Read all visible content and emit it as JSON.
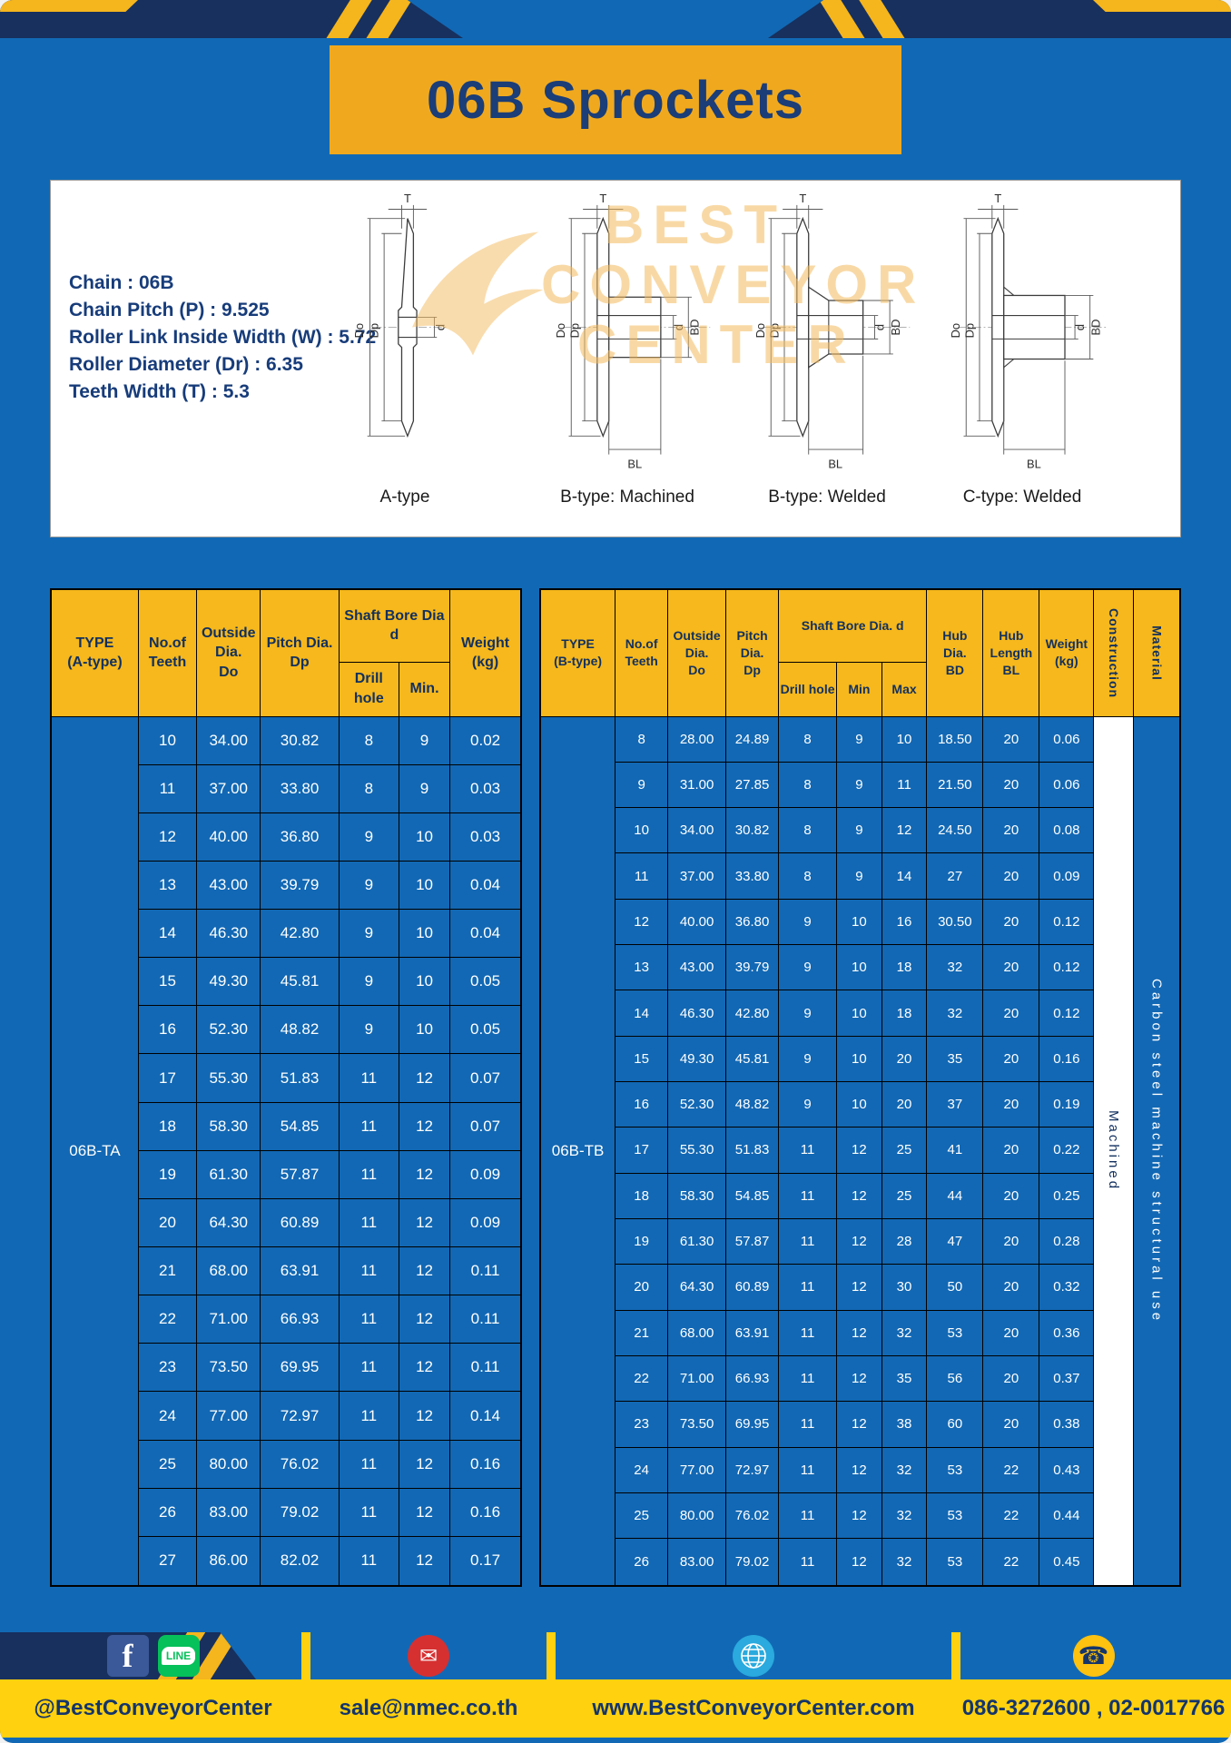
{
  "title": "06B Sprockets",
  "colors": {
    "page_blue": "#1169b5",
    "cell_blue": "#1268b4",
    "accent_yellow": "#f5b51d",
    "banner_yellow": "#f0a91e",
    "header_yellow": "#f6b81c",
    "footer_yellow": "#ffd10e",
    "navy": "#16305f"
  },
  "specs": {
    "lines": [
      "Chain  :  06B",
      "Chain Pitch (P)  :  9.525",
      "Roller Link Inside Width (W)  :  5.72",
      "Roller Diameter (Dr)  :  6.35",
      "Teeth Width (T)  :  5.3"
    ]
  },
  "drawings": {
    "watermark": [
      "BEST",
      "CONVEYOR",
      "CENTER"
    ],
    "labels": [
      "A-type",
      "B-type: Machined",
      "B-type: Welded",
      "C-type: Welded"
    ],
    "dims": {
      "T": "T",
      "Do": "Do",
      "Dp": "Dp",
      "d": "d",
      "BD": "BD",
      "BL": "BL"
    }
  },
  "table_a": {
    "headers": {
      "type": "TYPE\n(A-type)",
      "teeth": "No.of\nTeeth",
      "outside": "Outside\nDia.\nDo",
      "pitch": "Pitch Dia.\nDp",
      "bore_group": "Shaft Bore Dia d",
      "drill": "Drill hole",
      "min": "Min.",
      "weight": "Weight\n(kg)"
    },
    "type_label": "06B-TA",
    "rows": [
      [
        "10",
        "34.00",
        "30.82",
        "8",
        "9",
        "0.02"
      ],
      [
        "11",
        "37.00",
        "33.80",
        "8",
        "9",
        "0.03"
      ],
      [
        "12",
        "40.00",
        "36.80",
        "9",
        "10",
        "0.03"
      ],
      [
        "13",
        "43.00",
        "39.79",
        "9",
        "10",
        "0.04"
      ],
      [
        "14",
        "46.30",
        "42.80",
        "9",
        "10",
        "0.04"
      ],
      [
        "15",
        "49.30",
        "45.81",
        "9",
        "10",
        "0.05"
      ],
      [
        "16",
        "52.30",
        "48.82",
        "9",
        "10",
        "0.05"
      ],
      [
        "17",
        "55.30",
        "51.83",
        "11",
        "12",
        "0.07"
      ],
      [
        "18",
        "58.30",
        "54.85",
        "11",
        "12",
        "0.07"
      ],
      [
        "19",
        "61.30",
        "57.87",
        "11",
        "12",
        "0.09"
      ],
      [
        "20",
        "64.30",
        "60.89",
        "11",
        "12",
        "0.09"
      ],
      [
        "21",
        "68.00",
        "63.91",
        "11",
        "12",
        "0.11"
      ],
      [
        "22",
        "71.00",
        "66.93",
        "11",
        "12",
        "0.11"
      ],
      [
        "23",
        "73.50",
        "69.95",
        "11",
        "12",
        "0.11"
      ],
      [
        "24",
        "77.00",
        "72.97",
        "11",
        "12",
        "0.14"
      ],
      [
        "25",
        "80.00",
        "76.02",
        "11",
        "12",
        "0.16"
      ],
      [
        "26",
        "83.00",
        "79.02",
        "11",
        "12",
        "0.16"
      ],
      [
        "27",
        "86.00",
        "82.02",
        "11",
        "12",
        "0.17"
      ]
    ]
  },
  "table_b": {
    "headers": {
      "type": "TYPE\n(B-type)",
      "teeth": "No.of\nTeeth",
      "outside": "Outside\nDia.\nDo",
      "pitch": "Pitch\nDia.\nDp",
      "bore_group": "Shaft Bore Dia.  d",
      "drill": "Drill hole",
      "min": "Min",
      "max": "Max",
      "hub_dia": "Hub\nDia.\nBD",
      "hub_len": "Hub\nLength\nBL",
      "weight": "Weight\n(kg)",
      "construction": "Construction",
      "material": "Material"
    },
    "type_label": "06B-TB",
    "construction_value": "Machined",
    "material_value": "Carbon steel machine structural use",
    "rows": [
      [
        "8",
        "28.00",
        "24.89",
        "8",
        "9",
        "10",
        "18.50",
        "20",
        "0.06"
      ],
      [
        "9",
        "31.00",
        "27.85",
        "8",
        "9",
        "11",
        "21.50",
        "20",
        "0.06"
      ],
      [
        "10",
        "34.00",
        "30.82",
        "8",
        "9",
        "12",
        "24.50",
        "20",
        "0.08"
      ],
      [
        "11",
        "37.00",
        "33.80",
        "8",
        "9",
        "14",
        "27",
        "20",
        "0.09"
      ],
      [
        "12",
        "40.00",
        "36.80",
        "9",
        "10",
        "16",
        "30.50",
        "20",
        "0.12"
      ],
      [
        "13",
        "43.00",
        "39.79",
        "9",
        "10",
        "18",
        "32",
        "20",
        "0.12"
      ],
      [
        "14",
        "46.30",
        "42.80",
        "9",
        "10",
        "18",
        "32",
        "20",
        "0.12"
      ],
      [
        "15",
        "49.30",
        "45.81",
        "9",
        "10",
        "20",
        "35",
        "20",
        "0.16"
      ],
      [
        "16",
        "52.30",
        "48.82",
        "9",
        "10",
        "20",
        "37",
        "20",
        "0.19"
      ],
      [
        "17",
        "55.30",
        "51.83",
        "11",
        "12",
        "25",
        "41",
        "20",
        "0.22"
      ],
      [
        "18",
        "58.30",
        "54.85",
        "11",
        "12",
        "25",
        "44",
        "20",
        "0.25"
      ],
      [
        "19",
        "61.30",
        "57.87",
        "11",
        "12",
        "28",
        "47",
        "20",
        "0.28"
      ],
      [
        "20",
        "64.30",
        "60.89",
        "11",
        "12",
        "30",
        "50",
        "20",
        "0.32"
      ],
      [
        "21",
        "68.00",
        "63.91",
        "11",
        "12",
        "32",
        "53",
        "20",
        "0.36"
      ],
      [
        "22",
        "71.00",
        "66.93",
        "11",
        "12",
        "35",
        "56",
        "20",
        "0.37"
      ],
      [
        "23",
        "73.50",
        "69.95",
        "11",
        "12",
        "38",
        "60",
        "20",
        "0.38"
      ],
      [
        "24",
        "77.00",
        "72.97",
        "11",
        "12",
        "32",
        "53",
        "22",
        "0.43"
      ],
      [
        "25",
        "80.00",
        "76.02",
        "11",
        "12",
        "32",
        "53",
        "22",
        "0.44"
      ],
      [
        "26",
        "83.00",
        "79.02",
        "11",
        "12",
        "32",
        "53",
        "22",
        "0.45"
      ]
    ]
  },
  "footer": {
    "facebook_label": "f",
    "line_label": "LINE",
    "icons": {
      "email": "✉",
      "phone": "☎"
    },
    "facebook_line_text": "@BestConveyorCenter",
    "email_text": "sale@nmec.co.th",
    "website_text": "www.BestConveyorCenter.com",
    "phone_text": "086-3272600 , 02-0017766"
  }
}
